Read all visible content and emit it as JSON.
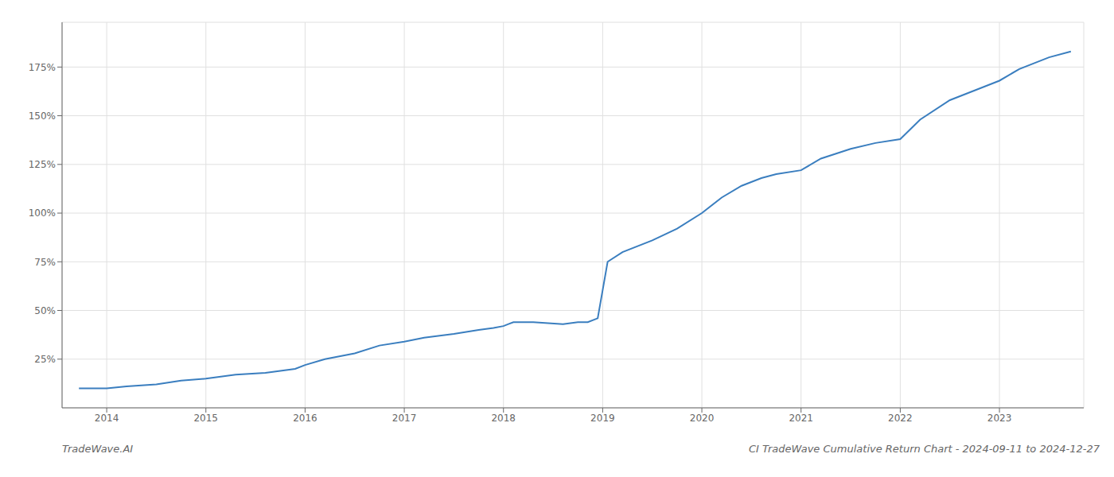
{
  "chart_data": {
    "type": "line",
    "title": "CI TradeWave Cumulative Return Chart - 2024-09-11 to 2024-12-27",
    "annotations": [
      "TradeWave.AI"
    ],
    "color": "#3a7ebf",
    "grid": true,
    "x": [
      2013.72,
      2014.0,
      2014.2,
      2014.5,
      2014.75,
      2015.0,
      2015.3,
      2015.6,
      2015.9,
      2016.0,
      2016.2,
      2016.5,
      2016.75,
      2017.0,
      2017.2,
      2017.5,
      2017.75,
      2017.9,
      2018.0,
      2018.05,
      2018.1,
      2018.3,
      2018.6,
      2018.75,
      2018.85,
      2018.95,
      2019.05,
      2019.2,
      2019.5,
      2019.75,
      2020.0,
      2020.2,
      2020.4,
      2020.6,
      2020.75,
      2021.0,
      2021.2,
      2021.5,
      2021.75,
      2022.0,
      2022.2,
      2022.5,
      2022.75,
      2023.0,
      2023.2,
      2023.5,
      2023.72
    ],
    "values": [
      10,
      10,
      11,
      12,
      14,
      15,
      17,
      18,
      20,
      22,
      25,
      28,
      32,
      34,
      36,
      38,
      40,
      41,
      42,
      43,
      44,
      44,
      43,
      44,
      44,
      46,
      75,
      80,
      86,
      92,
      100,
      108,
      114,
      118,
      120,
      122,
      128,
      133,
      136,
      138,
      148,
      158,
      163,
      168,
      174,
      180,
      183
    ],
    "xlim": [
      2013.55,
      2023.85
    ],
    "xticks": [
      2014,
      2015,
      2016,
      2017,
      2018,
      2019,
      2020,
      2021,
      2022,
      2023
    ],
    "ylim": [
      0,
      198
    ],
    "yticks": [
      {
        "value": 25,
        "label": "25%"
      },
      {
        "value": 50,
        "label": "50%"
      },
      {
        "value": 75,
        "label": "75%"
      },
      {
        "value": 100,
        "label": "100%"
      },
      {
        "value": 125,
        "label": "125%"
      },
      {
        "value": 150,
        "label": "150%"
      },
      {
        "value": 175,
        "label": "175%"
      }
    ]
  }
}
